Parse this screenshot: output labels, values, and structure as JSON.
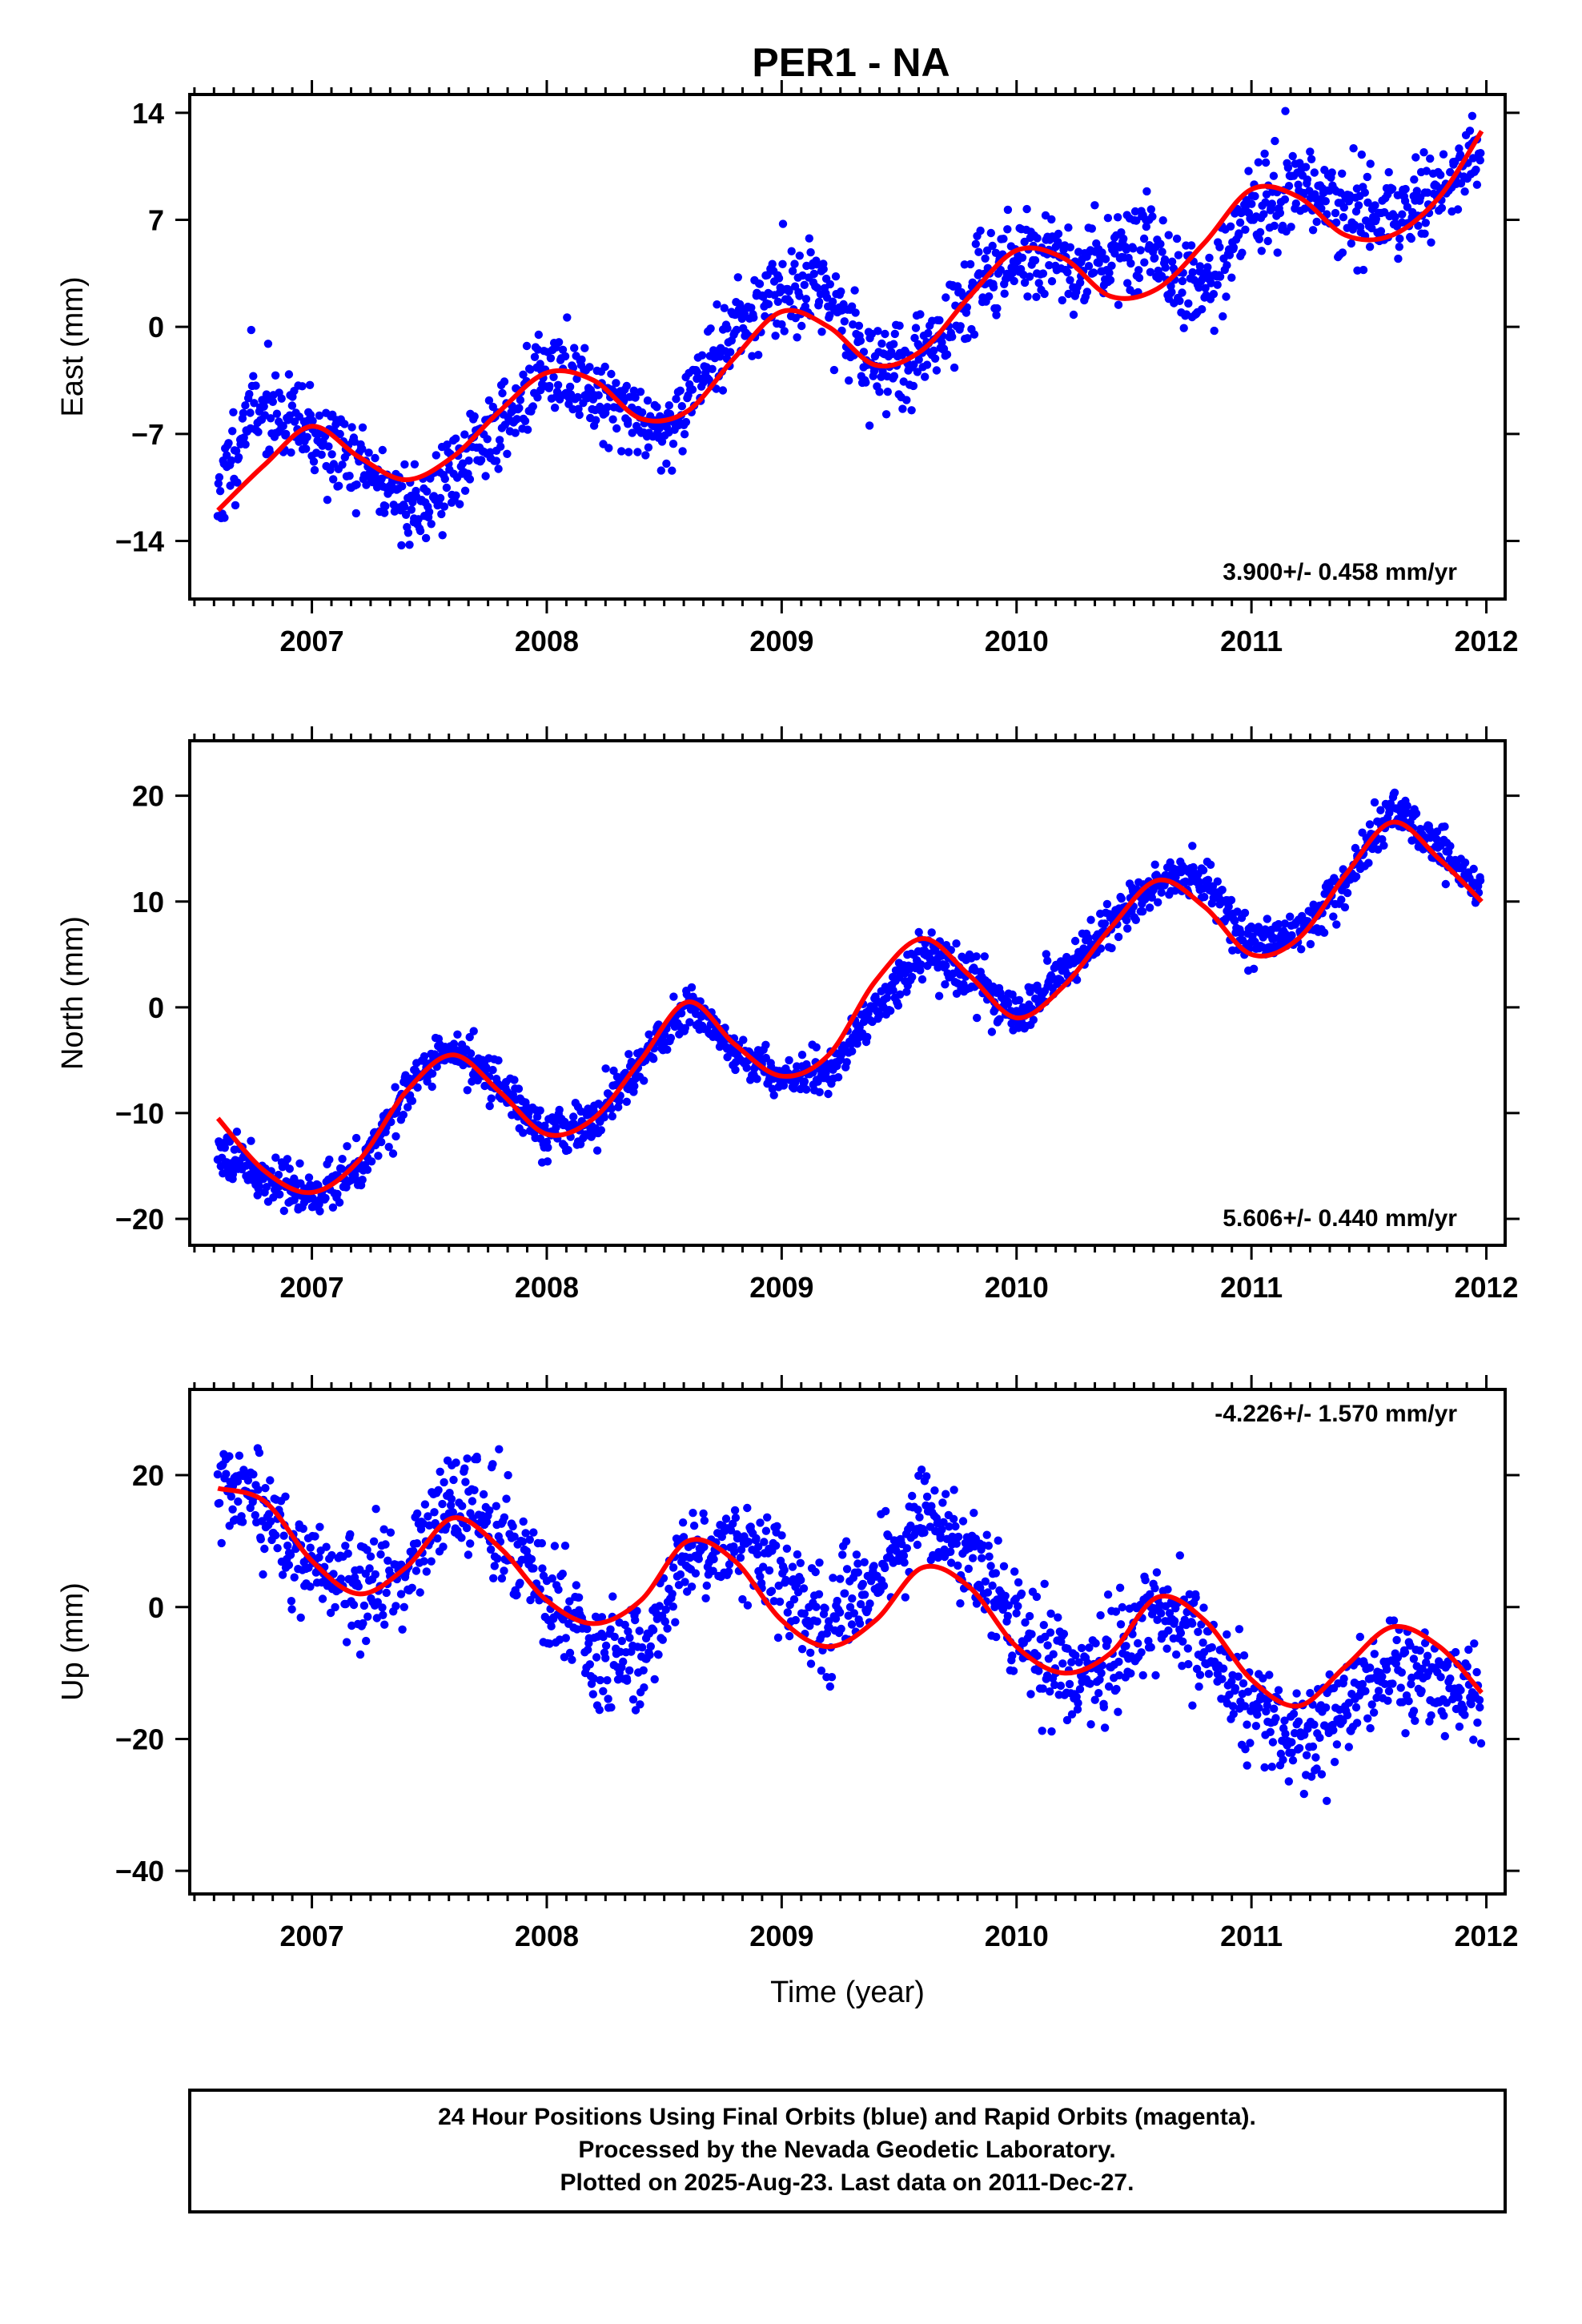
{
  "footer": {
    "line1": "24 Hour Positions Using Final Orbits (blue) and Rapid Orbits (magenta).",
    "line2": "Processed by the Nevada Geodetic Laboratory.",
    "line3": "Plotted on 2025-Aug-23. Last data on 2011-Dec-27."
  },
  "colors": {
    "points": "#0000ff",
    "fit": "#ff0000",
    "frame": "#000000"
  },
  "chart_data": [
    {
      "type": "scatter",
      "title": "PER1 - NA",
      "xlabel": "",
      "ylabel": "East (mm)",
      "xlim": [
        2006.48,
        2012.08
      ],
      "ylim": [
        -17.8,
        15.2
      ],
      "xticks": [
        2007,
        2008,
        2009,
        2010,
        2011,
        2012
      ],
      "yticks": [
        14,
        7,
        0,
        -7,
        -14
      ],
      "ytick_labels": [
        "14",
        "7",
        "0",
        "−7",
        "−14"
      ],
      "rate_label": "3.900+/- 0.458 mm/yr",
      "series": [
        {
          "type": "scatter",
          "seed": 11,
          "noise": 2.4,
          "x": [
            2006.6,
            2006.75,
            2007.0,
            2007.2,
            2007.45,
            2007.7,
            2008.0,
            2008.2,
            2008.5,
            2008.75,
            2008.95,
            2009.15,
            2009.4,
            2009.6,
            2009.9,
            2010.1,
            2010.3,
            2010.55,
            2010.8,
            2011.0,
            2011.2,
            2011.45,
            2011.7,
            2011.98
          ],
          "y": [
            -11,
            -5,
            -7,
            -9,
            -12,
            -8,
            -3,
            -4,
            -7,
            -1,
            2,
            3,
            -3,
            -2,
            4,
            5,
            4,
            6,
            2,
            8,
            9,
            7,
            8,
            11
          ]
        },
        {
          "type": "line",
          "x": [
            2006.6,
            2006.8,
            2007.0,
            2007.2,
            2007.4,
            2007.6,
            2007.8,
            2008.0,
            2008.2,
            2008.4,
            2008.6,
            2008.8,
            2009.0,
            2009.2,
            2009.4,
            2009.6,
            2009.8,
            2010.0,
            2010.2,
            2010.4,
            2010.6,
            2010.8,
            2011.0,
            2011.2,
            2011.4,
            2011.6,
            2011.8,
            2011.98
          ],
          "y": [
            -12,
            -9,
            -6.5,
            -8.5,
            -10,
            -8.5,
            -5.5,
            -3,
            -3.5,
            -6,
            -5.5,
            -2,
            1,
            0,
            -2.5,
            -1.5,
            2,
            5,
            4.5,
            2,
            2.5,
            5.5,
            9,
            8.5,
            6,
            6,
            8.5,
            12.8
          ]
        }
      ]
    },
    {
      "type": "scatter",
      "title": "",
      "xlabel": "",
      "ylabel": "North (mm)",
      "xlim": [
        2006.48,
        2012.08
      ],
      "ylim": [
        -22.5,
        25.2
      ],
      "xticks": [
        2007,
        2008,
        2009,
        2010,
        2011,
        2012
      ],
      "yticks": [
        20,
        10,
        0,
        -10,
        -20
      ],
      "ytick_labels": [
        "20",
        "10",
        "0",
        "−10",
        "−20"
      ],
      "rate_label": "5.606+/- 0.440 mm/yr",
      "series": [
        {
          "type": "scatter",
          "seed": 23,
          "noise": 1.8,
          "x": [
            2006.6,
            2006.8,
            2007.0,
            2007.2,
            2007.4,
            2007.6,
            2007.8,
            2008.0,
            2008.2,
            2008.4,
            2008.6,
            2008.8,
            2009.0,
            2009.2,
            2009.4,
            2009.6,
            2009.8,
            2010.0,
            2010.2,
            2010.4,
            2010.6,
            2010.8,
            2011.0,
            2011.2,
            2011.4,
            2011.6,
            2011.8,
            2011.98
          ],
          "y": [
            -13,
            -16,
            -18,
            -15,
            -8,
            -4,
            -7,
            -12,
            -11,
            -5,
            0,
            -4,
            -7,
            -6,
            0,
            5,
            3,
            -1,
            3,
            8,
            12,
            12,
            6,
            7,
            12,
            19,
            15,
            11
          ]
        },
        {
          "type": "line",
          "x": [
            2006.6,
            2006.8,
            2007.0,
            2007.2,
            2007.4,
            2007.6,
            2007.8,
            2008.0,
            2008.2,
            2008.4,
            2008.6,
            2008.8,
            2009.0,
            2009.2,
            2009.4,
            2009.6,
            2009.8,
            2010.0,
            2010.2,
            2010.4,
            2010.6,
            2010.8,
            2011.0,
            2011.2,
            2011.4,
            2011.6,
            2011.8,
            2011.98
          ],
          "y": [
            -10.5,
            -15.5,
            -17.5,
            -14.5,
            -8,
            -4.5,
            -8,
            -12,
            -10.5,
            -5,
            0.5,
            -3.5,
            -6.5,
            -4.5,
            2.5,
            6.5,
            3,
            -1,
            2,
            7.5,
            12,
            9.5,
            5,
            6.5,
            12.5,
            17.5,
            14,
            10
          ]
        }
      ]
    },
    {
      "type": "scatter",
      "title": "",
      "xlabel": "Time (year)",
      "ylabel": "Up (mm)",
      "xlim": [
        2006.48,
        2012.08
      ],
      "ylim": [
        -43.5,
        33.0
      ],
      "xticks": [
        2007,
        2008,
        2009,
        2010,
        2011,
        2012
      ],
      "yticks": [
        20,
        0,
        -20,
        -40
      ],
      "ytick_labels": [
        "20",
        "0",
        "−20",
        "−40"
      ],
      "rate_label": "-4.226+/- 1.570 mm/yr",
      "series": [
        {
          "type": "scatter",
          "seed": 37,
          "noise": 6.5,
          "x": [
            2006.6,
            2006.8,
            2007.0,
            2007.2,
            2007.4,
            2007.6,
            2007.8,
            2008.0,
            2008.2,
            2008.4,
            2008.6,
            2008.8,
            2009.0,
            2009.2,
            2009.4,
            2009.6,
            2009.8,
            2010.0,
            2010.2,
            2010.4,
            2010.6,
            2010.8,
            2011.0,
            2011.2,
            2011.4,
            2011.6,
            2011.8,
            2011.98
          ],
          "y": [
            18,
            14,
            6,
            2,
            5,
            17,
            12,
            2,
            -7,
            -8,
            8,
            10,
            5,
            -3,
            4,
            14,
            8,
            -4,
            -10,
            -8,
            0,
            -6,
            -15,
            -22,
            -15,
            -8,
            -12,
            -14
          ]
        },
        {
          "type": "line",
          "x": [
            2006.6,
            2006.8,
            2007.0,
            2007.2,
            2007.4,
            2007.6,
            2007.8,
            2008.0,
            2008.2,
            2008.4,
            2008.6,
            2008.8,
            2009.0,
            2009.2,
            2009.4,
            2009.6,
            2009.8,
            2010.0,
            2010.2,
            2010.4,
            2010.6,
            2010.8,
            2011.0,
            2011.2,
            2011.4,
            2011.6,
            2011.8,
            2011.98
          ],
          "y": [
            18,
            16,
            7,
            2,
            6,
            13.5,
            9,
            1,
            -2.5,
            1,
            10,
            7,
            -2,
            -6,
            -2,
            6,
            3,
            -6,
            -10,
            -7,
            1.5,
            -2,
            -11,
            -15,
            -9,
            -3,
            -6,
            -13
          ]
        }
      ]
    }
  ]
}
